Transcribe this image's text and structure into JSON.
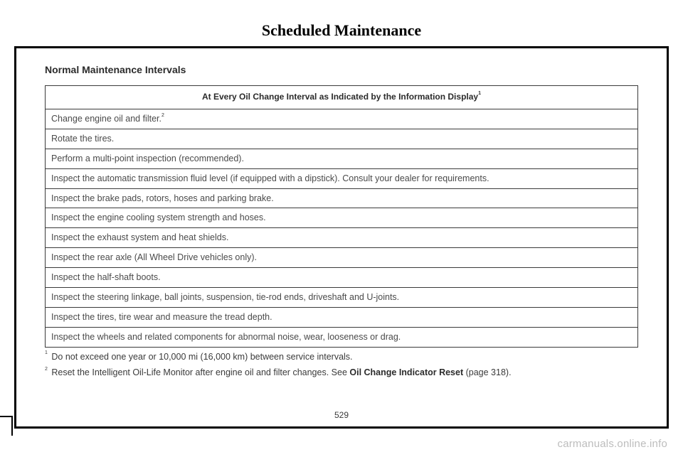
{
  "page": {
    "title": "Scheduled Maintenance",
    "section_heading": "Normal Maintenance Intervals",
    "page_number": "529",
    "watermark": "carmanuals.online.info"
  },
  "table": {
    "header": "At Every Oil Change Interval as Indicated by the Information Display",
    "header_sup": "1",
    "rows": [
      {
        "text": "Change engine oil and filter.",
        "sup": "2"
      },
      {
        "text": "Rotate the tires."
      },
      {
        "text": "Perform a multi-point inspection (recommended)."
      },
      {
        "text": "Inspect the automatic transmission fluid level (if equipped with a dipstick). Consult your dealer for requirements."
      },
      {
        "text": "Inspect the brake pads, rotors, hoses and parking brake."
      },
      {
        "text": "Inspect the engine cooling system strength and hoses."
      },
      {
        "text": "Inspect the exhaust system and heat shields."
      },
      {
        "text": "Inspect the rear axle (All Wheel Drive vehicles only)."
      },
      {
        "text": "Inspect the half-shaft boots."
      },
      {
        "text": "Inspect the steering linkage, ball joints, suspension, tie-rod ends, driveshaft and U-joints."
      },
      {
        "text": "Inspect the tires, tire wear and measure the tread depth."
      },
      {
        "text": "Inspect the wheels and related components for abnormal noise, wear, looseness or drag."
      }
    ]
  },
  "footnotes": [
    {
      "num": "1",
      "text": "Do not exceed one year or 10,000 mi (16,000 km) between service intervals."
    },
    {
      "num": "2",
      "text_pre": "Reset the Intelligent Oil-Life Monitor after engine oil and filter changes.  See ",
      "bold": "Oil Change Indicator Reset",
      "text_post": " (page 318)."
    }
  ]
}
